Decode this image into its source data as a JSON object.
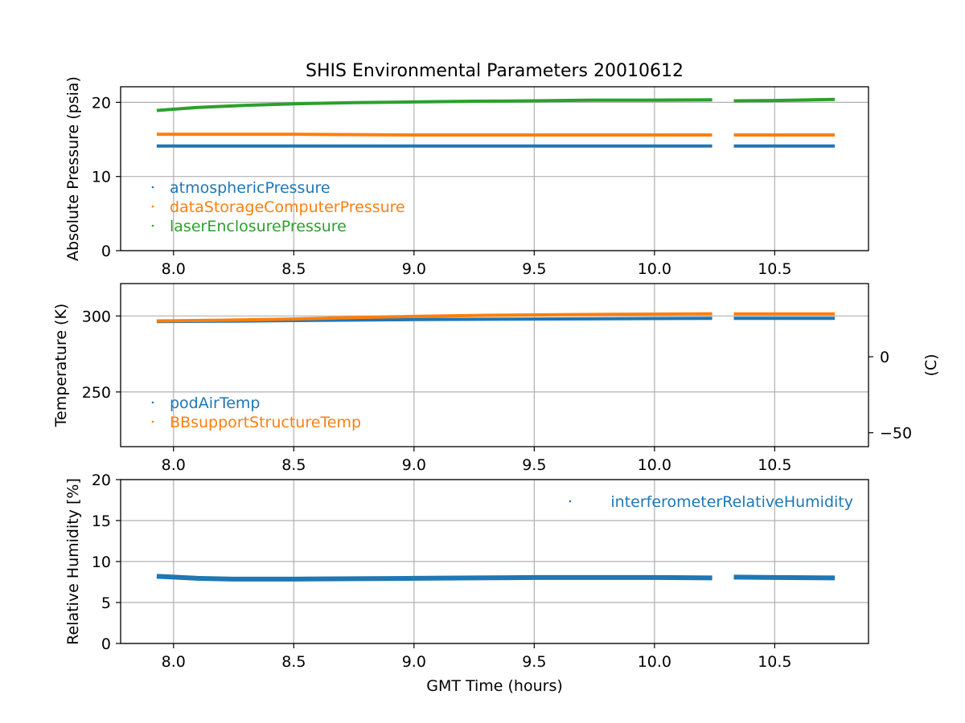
{
  "chart_data": {
    "type": "line",
    "title": "SHIS Environmental Parameters 20010612",
    "xlabel": "GMT Time (hours)",
    "xlim": [
      7.78,
      10.89
    ],
    "xticks": [
      8.0,
      8.5,
      9.0,
      9.5,
      10.0,
      10.5
    ],
    "xtick_labels": [
      "8.0",
      "8.5",
      "9.0",
      "9.5",
      "10.0",
      "10.5"
    ],
    "colors": {
      "blue": "#1f77b4",
      "orange": "#ff7f0e",
      "green": "#2ca02c"
    },
    "panels": [
      {
        "id": "pressure",
        "ylabel": "Absolute Pressure (psia)",
        "ylim": [
          0,
          22.1
        ],
        "yticks": [
          0,
          10,
          20
        ],
        "ytick_labels": [
          "0",
          "10",
          "20"
        ],
        "legend_loc": "lower-left",
        "series": [
          {
            "name": "atmosphericPressure",
            "color": "#1f77b4",
            "x": [
              7.93,
              8.5,
              9.0,
              9.5,
              10.0,
              10.24,
              null,
              10.33,
              10.75
            ],
            "y": [
              14.1,
              14.1,
              14.1,
              14.1,
              14.1,
              14.1,
              null,
              14.1,
              14.1
            ]
          },
          {
            "name": "dataStorageComputerPressure",
            "color": "#ff7f0e",
            "x": [
              7.93,
              8.5,
              9.0,
              9.5,
              10.0,
              10.24,
              null,
              10.33,
              10.75
            ],
            "y": [
              15.7,
              15.7,
              15.6,
              15.6,
              15.6,
              15.6,
              null,
              15.6,
              15.6
            ]
          },
          {
            "name": "laserEnclosurePressure",
            "color": "#2ca02c",
            "x": [
              7.93,
              8.1,
              8.3,
              8.5,
              8.75,
              9.0,
              9.25,
              9.5,
              9.75,
              10.0,
              10.24,
              null,
              10.33,
              10.5,
              10.75
            ],
            "y": [
              18.9,
              19.3,
              19.6,
              19.8,
              19.95,
              20.05,
              20.15,
              20.2,
              20.3,
              20.3,
              20.35,
              null,
              20.2,
              20.25,
              20.4
            ]
          }
        ]
      },
      {
        "id": "temperature",
        "ylabel": "Temperature (K)",
        "right_ylabel": "(C)",
        "ylim": [
          214.0,
          321.3
        ],
        "yticks": [
          250,
          300
        ],
        "ytick_labels": [
          "250",
          "300"
        ],
        "right_yticks": [
          0,
          -50
        ],
        "right_ytick_labels": [
          "0",
          "−50"
        ],
        "legend_loc": "lower-left",
        "series": [
          {
            "name": "podAirTemp",
            "color": "#1f77b4",
            "x": [
              7.93,
              8.25,
              8.5,
              9.0,
              9.5,
              10.0,
              10.24,
              null,
              10.33,
              10.75
            ],
            "y": [
              296.3,
              296.6,
              297.0,
              297.6,
              298.0,
              298.3,
              298.4,
              null,
              298.4,
              298.4
            ]
          },
          {
            "name": "BBsupportStructureTemp",
            "color": "#ff7f0e",
            "x": [
              7.93,
              8.2,
              8.5,
              8.75,
              9.0,
              9.3,
              9.65,
              10.0,
              10.24,
              null,
              10.33,
              10.75
            ],
            "y": [
              296.7,
              297.2,
              298.0,
              299.0,
              299.7,
              300.4,
              300.9,
              301.2,
              301.4,
              null,
              301.3,
              301.3
            ]
          }
        ]
      },
      {
        "id": "humidity",
        "ylabel": "Relative Humidity [%]",
        "ylim": [
          0,
          20
        ],
        "yticks": [
          0,
          5,
          10,
          15,
          20
        ],
        "ytick_labels": [
          "0",
          "5",
          "10",
          "15",
          "20"
        ],
        "legend_loc": "top-right",
        "series": [
          {
            "name": "interferometerRelativeHumidity",
            "color": "#1f77b4",
            "x": [
              7.93,
              8.0,
              8.1,
              8.25,
              8.5,
              8.75,
              9.0,
              9.25,
              9.5,
              9.75,
              10.0,
              10.24,
              null,
              10.33,
              10.5,
              10.75
            ],
            "y": [
              8.2,
              8.1,
              7.95,
              7.85,
              7.85,
              7.9,
              7.95,
              8.0,
              8.05,
              8.05,
              8.05,
              8.0,
              null,
              8.1,
              8.05,
              8.0
            ]
          }
        ]
      }
    ]
  }
}
